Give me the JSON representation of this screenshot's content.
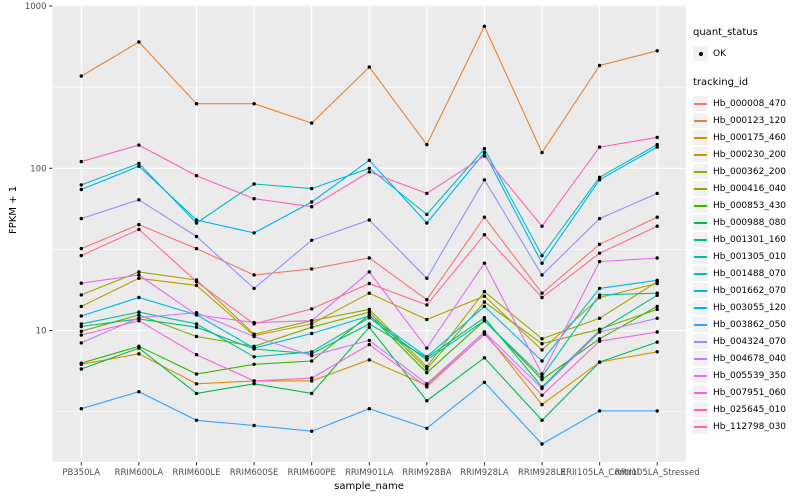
{
  "figure": {
    "background": "#FFFFFF",
    "panel_background": "#EBEBEB",
    "gridline_color": "#FFFFFF",
    "tick_label_color": "#4D4D4D",
    "point_color": "#000000"
  },
  "legend": {
    "quant_status": {
      "title": "quant_status",
      "ok_label": "OK"
    },
    "tracking_id": {
      "title": "tracking_id"
    }
  },
  "chart_data": {
    "type": "line",
    "title": "",
    "xlabel": "sample_name",
    "ylabel": "FPKM + 1",
    "y_scale": "log10",
    "ylim": [
      1,
      1000
    ],
    "y_ticks": [
      1000,
      100,
      10
    ],
    "grid": "on",
    "legend_position": "right",
    "marker": "black-point",
    "categories": [
      "PB350LA",
      "RRIM600LA",
      "RRIM600LE",
      "RRIM600SE",
      "RRIM600PE",
      "RRIM901LA",
      "RRIM928BA",
      "RRIM928LA",
      "RRIM928LE",
      "RRII105LA_Control",
      "RRII105LA_Stressed"
    ],
    "series": [
      {
        "name": "Hb_000008_470",
        "color": "#F8766D",
        "values": [
          32,
          45,
          32,
          22,
          24,
          28,
          15.5,
          50,
          17,
          34,
          50
        ]
      },
      {
        "name": "Hb_000123_120",
        "color": "#EA8331",
        "values": [
          370,
          600,
          250,
          250,
          190,
          420,
          140,
          750,
          125,
          430,
          530
        ]
      },
      {
        "name": "Hb_000175_460",
        "color": "#D89000",
        "values": [
          6.2,
          7.2,
          4.7,
          4.9,
          4.9,
          6.6,
          4.6,
          9.8,
          3.5,
          6.4,
          7.4
        ]
      },
      {
        "name": "Hb_000230_200",
        "color": "#C09B00",
        "values": [
          14.1,
          21,
          19,
          9.3,
          11,
          17,
          11.7,
          16.3,
          7.6,
          16,
          19.5
        ]
      },
      {
        "name": "Hb_000362_200",
        "color": "#A3A500",
        "values": [
          16.6,
          23,
          20.5,
          9.5,
          11.5,
          13.5,
          6,
          17.4,
          8.9,
          11.9,
          20
        ]
      },
      {
        "name": "Hb_000416_040",
        "color": "#7CAE00",
        "values": [
          9.9,
          12.5,
          9.2,
          8,
          10.5,
          13,
          5.8,
          15,
          8.3,
          10.2,
          13.5
        ]
      },
      {
        "name": "Hb_000853_430",
        "color": "#39B600",
        "values": [
          6.3,
          8,
          5.4,
          6.2,
          6.5,
          12.5,
          5.5,
          11.5,
          5,
          8.9,
          14.1
        ]
      },
      {
        "name": "Hb_000988_080",
        "color": "#00BB4E",
        "values": [
          5.8,
          7.8,
          4.1,
          4.7,
          4.1,
          10.5,
          3.7,
          6.8,
          2.8,
          6.4,
          8.5
        ]
      },
      {
        "name": "Hb_001301_160",
        "color": "#00BF7D",
        "values": [
          10.6,
          11.8,
          10.5,
          7.7,
          7.2,
          11,
          6.8,
          12,
          4.5,
          10,
          16.5
        ]
      },
      {
        "name": "Hb_001305_010",
        "color": "#00C1A3",
        "values": [
          11,
          13,
          11,
          6.9,
          7.4,
          12,
          6.6,
          11.5,
          5.2,
          16.6,
          17
        ]
      },
      {
        "name": "Hb_001488_070",
        "color": "#00BFC4",
        "values": [
          79,
          107,
          46,
          80,
          75,
          100,
          52,
          132,
          29,
          88,
          140
        ]
      },
      {
        "name": "Hb_001662_070",
        "color": "#00BAE0",
        "values": [
          12.3,
          16,
          12.5,
          7.8,
          9.6,
          12.3,
          6.9,
          14.1,
          6.5,
          18.2,
          20.4
        ]
      },
      {
        "name": "Hb_003055_120",
        "color": "#00B0F6",
        "values": [
          74,
          103,
          48,
          40,
          62,
          112,
          46,
          125,
          26,
          85,
          135
        ]
      },
      {
        "name": "Hb_003862_050",
        "color": "#35A2FF",
        "values": [
          3.3,
          4.2,
          2.8,
          2.6,
          2.4,
          3.3,
          2.5,
          4.8,
          2,
          3.2,
          3.2
        ]
      },
      {
        "name": "Hb_004324_070",
        "color": "#9590FF",
        "values": [
          49,
          64,
          38,
          18.2,
          36,
          48,
          21,
          85,
          22,
          49,
          70
        ]
      },
      {
        "name": "Hb_004678_040",
        "color": "#C77CFF",
        "values": [
          8.4,
          12,
          12.9,
          9.2,
          7,
          8.7,
          4.7,
          9.8,
          4.4,
          9.8,
          11.9
        ]
      },
      {
        "name": "Hb_005539_350",
        "color": "#E76BF3",
        "values": [
          19.6,
          22,
          12.5,
          11.2,
          11.5,
          23,
          7.8,
          26,
          5.4,
          26.6,
          28
        ]
      },
      {
        "name": "Hb_007951_060",
        "color": "#FA62DB",
        "values": [
          9.4,
          11.5,
          7.1,
          4.9,
          5.1,
          8.2,
          4.5,
          9.5,
          4,
          8.6,
          9.8
        ]
      },
      {
        "name": "Hb_025645_010",
        "color": "#FF62BC",
        "values": [
          110,
          139,
          90,
          65,
          58,
          95,
          70,
          119,
          44,
          135,
          155
        ]
      },
      {
        "name": "Hb_112798_030",
        "color": "#FF6A98",
        "values": [
          29,
          42,
          20,
          11,
          13.6,
          19.5,
          14.4,
          39,
          16,
          30,
          44
        ]
      }
    ]
  }
}
